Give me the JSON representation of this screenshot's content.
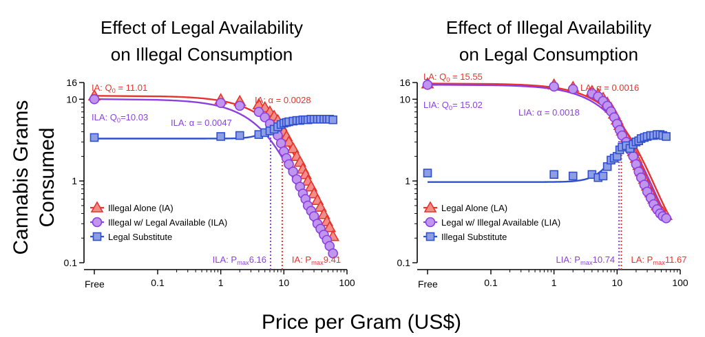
{
  "figure": {
    "ylabel_lines": [
      "Cannabis Grams",
      "Consumed"
    ],
    "xlabel": "Price per Gram (US$)"
  },
  "colors": {
    "red": "#e8322b",
    "purple": "#8b3fe0",
    "blue": "#2f4fd0",
    "axis": "#000000"
  },
  "chart_data": [
    {
      "type": "line",
      "title_lines": [
        "Effect of Legal Availability",
        "on Illegal Consumption"
      ],
      "x_scale": "log",
      "x_free_label": "Free",
      "x_ticks": [
        {
          "v": 0.1,
          "label": "0.1"
        },
        {
          "v": 1,
          "label": "1"
        },
        {
          "v": 10,
          "label": "10"
        },
        {
          "v": 100,
          "label": "100"
        }
      ],
      "y_scale": "log",
      "y_ticks": [
        {
          "v": 0.1,
          "label": "0.1"
        },
        {
          "v": 1,
          "label": "1"
        },
        {
          "v": 10,
          "label": "10"
        },
        {
          "v": 16,
          "label": "16"
        }
      ],
      "legend_position": "bottom-left",
      "series": [
        {
          "name": "Illegal Alone (IA)",
          "color": "red",
          "marker": "triangle",
          "curve": {
            "model": "exponential",
            "q0": 11.01,
            "alpha": 0.0028
          },
          "points": [
            [
              0,
              11.0
            ],
            [
              1,
              9.9
            ],
            [
              2,
              9.4
            ],
            [
              4,
              8.6
            ],
            [
              5,
              7.9
            ],
            [
              6,
              7.0
            ],
            [
              7,
              6.2
            ],
            [
              8,
              5.5
            ],
            [
              9,
              4.7
            ],
            [
              10,
              4.0
            ],
            [
              11,
              3.5
            ],
            [
              12,
              3.0
            ],
            [
              14,
              2.5
            ],
            [
              16,
              2.0
            ],
            [
              18,
              1.7
            ],
            [
              20,
              1.4
            ],
            [
              22,
              1.2
            ],
            [
              24,
              1.0
            ],
            [
              27,
              0.85
            ],
            [
              30,
              0.7
            ],
            [
              34,
              0.58
            ],
            [
              38,
              0.48
            ],
            [
              43,
              0.39
            ],
            [
              48,
              0.32
            ],
            [
              53,
              0.27
            ],
            [
              60,
              0.21
            ]
          ]
        },
        {
          "name": "Illegal w/ Legal Available (ILA)",
          "color": "purple",
          "marker": "circle",
          "curve": {
            "model": "exponential",
            "q0": 10.03,
            "alpha": 0.0047
          },
          "points": [
            [
              0,
              10.0
            ],
            [
              1,
              9.0
            ],
            [
              2,
              8.3
            ],
            [
              4,
              7.0
            ],
            [
              5,
              6.0
            ],
            [
              6,
              5.0
            ],
            [
              7,
              4.2
            ],
            [
              8,
              3.6
            ],
            [
              9,
              2.9
            ],
            [
              10,
              2.3
            ],
            [
              11,
              1.9
            ],
            [
              12,
              1.6
            ],
            [
              14,
              1.3
            ],
            [
              16,
              1.05
            ],
            [
              18,
              0.85
            ],
            [
              20,
              0.7
            ],
            [
              22,
              0.6
            ],
            [
              24,
              0.5
            ],
            [
              27,
              0.43
            ],
            [
              30,
              0.37
            ],
            [
              34,
              0.3
            ],
            [
              38,
              0.26
            ],
            [
              43,
              0.22
            ],
            [
              48,
              0.19
            ],
            [
              53,
              0.16
            ],
            [
              60,
              0.13
            ]
          ]
        },
        {
          "name": "Legal Substitute",
          "color": "blue",
          "marker": "square",
          "curve": {
            "model": "logistic",
            "low": 3.3,
            "high": 5.9,
            "mid": 6.5,
            "steep": 3.5
          },
          "points": [
            [
              0,
              3.4
            ],
            [
              1,
              3.5
            ],
            [
              2,
              3.6
            ],
            [
              4,
              3.7
            ],
            [
              5,
              3.9
            ],
            [
              6,
              4.1
            ],
            [
              7,
              4.3
            ],
            [
              8,
              4.6
            ],
            [
              9,
              4.9
            ],
            [
              10,
              5.1
            ],
            [
              11,
              5.2
            ],
            [
              12,
              5.3
            ],
            [
              14,
              5.4
            ],
            [
              16,
              5.5
            ],
            [
              18,
              5.5
            ],
            [
              20,
              5.6
            ],
            [
              22,
              5.6
            ],
            [
              24,
              5.6
            ],
            [
              27,
              5.7
            ],
            [
              30,
              5.7
            ],
            [
              34,
              5.7
            ],
            [
              38,
              5.7
            ],
            [
              43,
              5.7
            ],
            [
              48,
              5.7
            ],
            [
              53,
              5.7
            ],
            [
              60,
              5.6
            ]
          ]
        }
      ],
      "pmax": [
        {
          "series": "ILA",
          "value": 6.16,
          "color": "purple",
          "label_prefix": "ILA: P",
          "label_sub": "max",
          "label_value": " = $6.16"
        },
        {
          "series": "IA",
          "value": 9.41,
          "color": "red",
          "label_prefix": "IA: P",
          "label_sub": "max",
          "label_value": " = $9.41"
        }
      ],
      "annotations": {
        "q0_a": {
          "prefix": "IA: Q",
          "sub": "0",
          "value": " = 11.01",
          "color": "red"
        },
        "q0_b": {
          "prefix": "ILA: Q",
          "sub": "0",
          "value": "=10.03",
          "color": "purple"
        },
        "alpha_a": {
          "text": "IA: α = 0.0028",
          "color": "red"
        },
        "alpha_b": {
          "text": "ILA: α = 0.0047",
          "color": "purple"
        }
      }
    },
    {
      "type": "line",
      "title_lines": [
        "Effect of Illegal Availability",
        "on Legal Consumption"
      ],
      "x_scale": "log",
      "x_free_label": "Free",
      "x_ticks": [
        {
          "v": 0.1,
          "label": "0.1"
        },
        {
          "v": 1,
          "label": "1"
        },
        {
          "v": 10,
          "label": "10"
        },
        {
          "v": 100,
          "label": "100"
        }
      ],
      "y_scale": "log",
      "y_ticks": [
        {
          "v": 0.1,
          "label": "0.1"
        },
        {
          "v": 1,
          "label": "1"
        },
        {
          "v": 10,
          "label": "10"
        },
        {
          "v": 16,
          "label": "16"
        }
      ],
      "legend_position": "bottom-left",
      "series": [
        {
          "name": "Legal Alone (LA)",
          "color": "red",
          "marker": "triangle",
          "curve": {
            "model": "exponential",
            "q0": 15.55,
            "alpha": 0.0016
          },
          "points": [
            [
              0,
              15.5
            ],
            [
              1,
              15.0
            ],
            [
              2,
              14.0
            ],
            [
              4,
              12.5
            ],
            [
              5,
              11.5
            ],
            [
              6,
              10.3
            ],
            [
              7,
              9.0
            ],
            [
              8,
              7.8
            ],
            [
              9,
              6.6
            ],
            [
              10,
              5.6
            ],
            [
              11,
              4.8
            ],
            [
              12,
              4.1
            ],
            [
              14,
              3.4
            ],
            [
              16,
              2.8
            ],
            [
              18,
              2.3
            ],
            [
              20,
              1.9
            ],
            [
              22,
              1.55
            ],
            [
              24,
              1.3
            ],
            [
              27,
              1.05
            ],
            [
              30,
              0.87
            ],
            [
              34,
              0.72
            ],
            [
              38,
              0.6
            ],
            [
              43,
              0.5
            ],
            [
              48,
              0.45
            ],
            [
              53,
              0.41
            ],
            [
              60,
              0.38
            ]
          ]
        },
        {
          "name": "Legal w/ Illegal Available (LIA)",
          "color": "purple",
          "marker": "circle",
          "curve": {
            "model": "exponential",
            "q0": 15.02,
            "alpha": 0.0018
          },
          "points": [
            [
              0,
              15.0
            ],
            [
              1,
              14.3
            ],
            [
              2,
              13.3
            ],
            [
              4,
              11.8
            ],
            [
              5,
              10.8
            ],
            [
              6,
              9.5
            ],
            [
              7,
              8.3
            ],
            [
              8,
              7.1
            ],
            [
              9,
              6.0
            ],
            [
              10,
              5.0
            ],
            [
              11,
              4.2
            ],
            [
              12,
              3.6
            ],
            [
              14,
              3.0
            ],
            [
              16,
              2.4
            ],
            [
              18,
              2.0
            ],
            [
              20,
              1.6
            ],
            [
              22,
              1.3
            ],
            [
              24,
              1.1
            ],
            [
              27,
              0.9
            ],
            [
              30,
              0.74
            ],
            [
              34,
              0.62
            ],
            [
              38,
              0.52
            ],
            [
              43,
              0.45
            ],
            [
              48,
              0.4
            ],
            [
              53,
              0.37
            ],
            [
              60,
              0.35
            ]
          ]
        },
        {
          "name": "Illegal Substitute",
          "color": "blue",
          "marker": "square",
          "curve": {
            "model": "logistic",
            "low": 0.97,
            "high": 3.7,
            "mid": 11.0,
            "steep": 2.8
          },
          "points": [
            [
              0,
              1.25
            ],
            [
              1,
              1.2
            ],
            [
              2,
              1.15
            ],
            [
              4,
              1.2
            ],
            [
              5,
              1.1
            ],
            [
              6,
              1.15
            ],
            [
              7,
              1.5
            ],
            [
              8,
              1.8
            ],
            [
              9,
              1.9
            ],
            [
              10,
              2.0
            ],
            [
              11,
              2.4
            ],
            [
              12,
              2.6
            ],
            [
              14,
              2.7
            ],
            [
              16,
              2.5
            ],
            [
              18,
              2.8
            ],
            [
              20,
              3.0
            ],
            [
              22,
              3.1
            ],
            [
              24,
              3.3
            ],
            [
              27,
              3.4
            ],
            [
              30,
              3.5
            ],
            [
              34,
              3.6
            ],
            [
              38,
              3.6
            ],
            [
              43,
              3.7
            ],
            [
              48,
              3.7
            ],
            [
              53,
              3.6
            ],
            [
              60,
              3.5
            ]
          ]
        }
      ],
      "pmax": [
        {
          "series": "LIA",
          "value": 10.74,
          "color": "purple",
          "label_prefix": "LIA: P",
          "label_sub": "max",
          "label_value": " = $10.74"
        },
        {
          "series": "LA",
          "value": 11.67,
          "color": "red",
          "label_prefix": "LA: P",
          "label_sub": "max",
          "label_value": " = $11.67"
        }
      ],
      "annotations": {
        "q0_a": {
          "prefix": "LA: Q",
          "sub": "0",
          "value": " = 15.55",
          "color": "red"
        },
        "q0_b": {
          "prefix": "LIA: Q",
          "sub": "0",
          "value": "= 15.02",
          "color": "purple"
        },
        "alpha_a": {
          "text": "LA: α = 0.0016",
          "color": "red"
        },
        "alpha_b": {
          "text": "LIA: α = 0.0018",
          "color": "purple"
        }
      }
    }
  ]
}
